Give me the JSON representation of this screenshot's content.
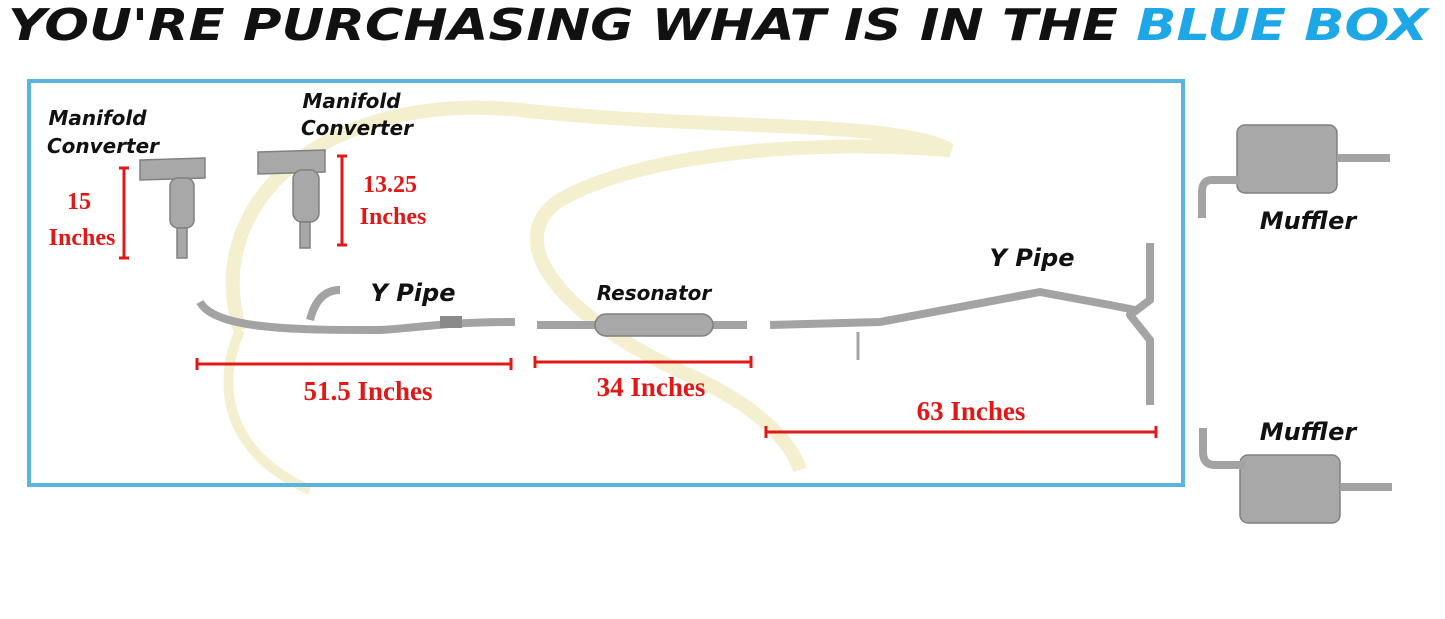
{
  "header": {
    "title": "YOU'RE PURCHASING WHAT IS IN THE",
    "highlight": "BLUE BOX"
  },
  "labels": [
    {
      "lines": [
        "Manifold",
        "Converter"
      ]
    },
    {
      "lines": [
        "Manifold",
        "Converter"
      ]
    },
    {
      "text": "Y Pipe"
    },
    {
      "text": "Resonator"
    },
    {
      "text": "Y Pipe"
    },
    {
      "text": "Muffler"
    },
    {
      "text": "Muffler"
    }
  ],
  "measurements": [
    {
      "lines": [
        "15",
        "Inches"
      ]
    },
    {
      "lines": [
        "13.25",
        "Inches"
      ]
    },
    {
      "text": "51.5 Inches"
    },
    {
      "text": "34 Inches"
    },
    {
      "text": "63 Inches"
    }
  ]
}
